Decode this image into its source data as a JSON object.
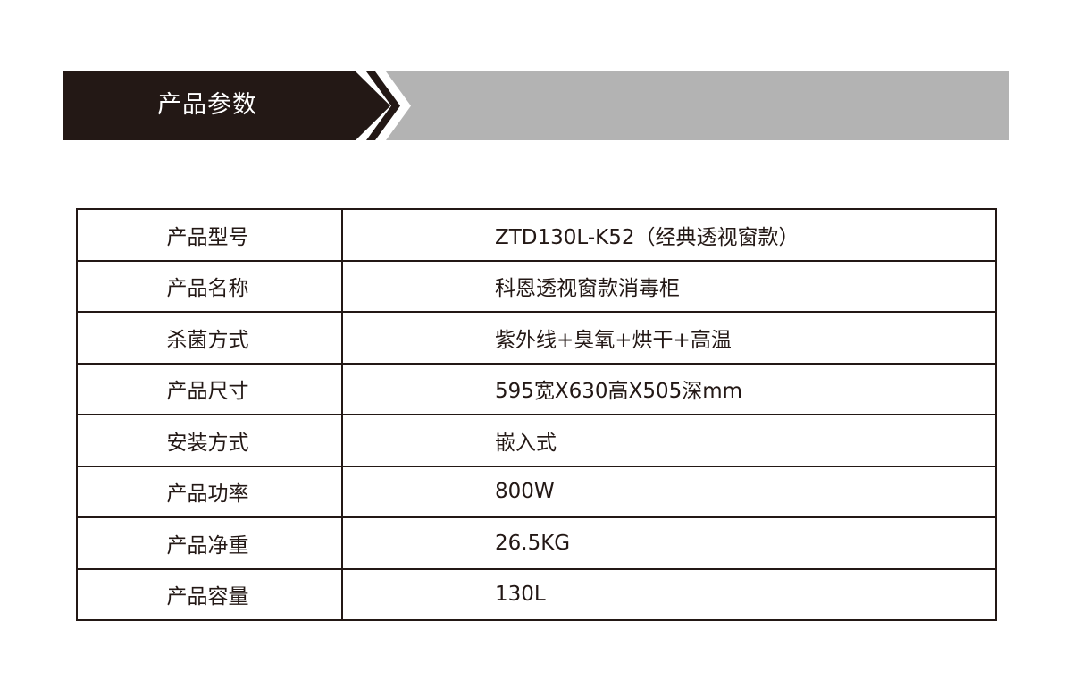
{
  "banner": {
    "title": "产品参数",
    "colors": {
      "dark": "#231815",
      "gray": "#b3b3b3"
    }
  },
  "specs": [
    {
      "label": "产品型号",
      "value": "ZTD130L-K52（经典透视窗款）"
    },
    {
      "label": "产品名称",
      "value": "科恩透视窗款消毒柜"
    },
    {
      "label": "杀菌方式",
      "value": "紫外线+臭氧+烘干+高温"
    },
    {
      "label": "产品尺寸",
      "value": "595宽X630高X505深mm"
    },
    {
      "label": "安装方式",
      "value": "嵌入式"
    },
    {
      "label": "产品功率",
      "value": "800W"
    },
    {
      "label": "产品净重",
      "value": "26.5KG"
    },
    {
      "label": "产品容量",
      "value": "130L"
    }
  ]
}
